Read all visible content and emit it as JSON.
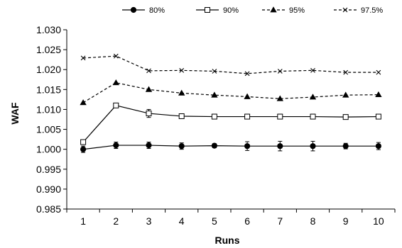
{
  "chart_data": {
    "type": "line",
    "xlabel": "Runs",
    "ylabel": "WAF",
    "categories": [
      "1",
      "2",
      "3",
      "4",
      "5",
      "6",
      "7",
      "8",
      "9",
      "10"
    ],
    "ylim": [
      0.985,
      1.03
    ],
    "yticks": [
      "0.985",
      "0.990",
      "0.995",
      "1.000",
      "1.005",
      "1.010",
      "1.015",
      "1.020",
      "1.025",
      "1.030"
    ],
    "grid": false,
    "legend_position": "top",
    "series": [
      {
        "name": "80%",
        "values": [
          1.0,
          1.001,
          1.001,
          1.0008,
          1.0009,
          1.0008,
          1.0008,
          1.0008,
          1.0008,
          1.0008
        ],
        "errors": [
          0.0008,
          0.0008,
          0.0008,
          0.0008,
          0.0005,
          0.0011,
          0.0012,
          0.0012,
          0.0007,
          0.0009
        ],
        "marker": "circle-filled",
        "line": "solid",
        "color": "#000000"
      },
      {
        "name": "90%",
        "values": [
          1.0018,
          1.011,
          1.009,
          1.0083,
          1.0082,
          1.0082,
          1.0082,
          1.0082,
          1.0081,
          1.0082
        ],
        "errors": [
          0.0001,
          0.0001,
          0.001,
          0.0002,
          0.0006,
          0.0006,
          0.0006,
          0.0006,
          0.0005,
          0.0003
        ],
        "marker": "square-open",
        "line": "solid",
        "color": "#000000"
      },
      {
        "name": "95%",
        "values": [
          1.0117,
          1.0167,
          1.015,
          1.0141,
          1.0136,
          1.0132,
          1.0127,
          1.0131,
          1.0136,
          1.0137
        ],
        "errors": [],
        "marker": "triangle-filled",
        "line": "dashed",
        "color": "#000000"
      },
      {
        "name": "97.5%",
        "values": [
          1.0229,
          1.0234,
          1.0197,
          1.0198,
          1.0196,
          1.019,
          1.0196,
          1.0198,
          1.0193,
          1.0193
        ],
        "errors": [],
        "marker": "x",
        "line": "dashed",
        "color": "#000000"
      }
    ]
  }
}
